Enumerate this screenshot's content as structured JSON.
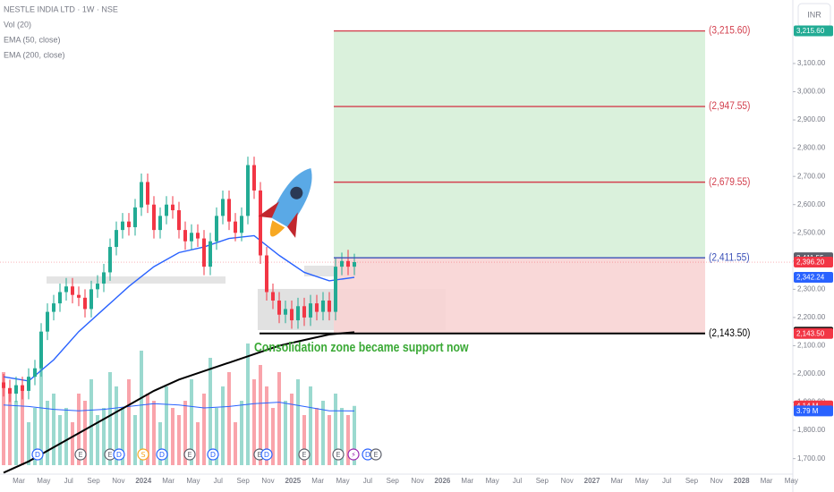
{
  "chart_data": {
    "type": "candlestick",
    "title": "NESTLE INDIA LTD · 1W · NSE",
    "legend_items": [
      "Vol (20)",
      "EMA (50, close)",
      "EMA (200, close)"
    ],
    "currency": "INR",
    "annotation": "Consolidation zone became support now",
    "x_labels": [
      "Mar",
      "May",
      "Jul",
      "Sep",
      "Nov",
      "2024",
      "Mar",
      "May",
      "Jul",
      "Sep",
      "Nov",
      "2025",
      "Mar",
      "May",
      "Jul",
      "Sep",
      "Nov",
      "2026",
      "Mar",
      "May",
      "Jul",
      "Sep",
      "Nov",
      "2027",
      "Mar",
      "May",
      "Jul",
      "Sep",
      "Nov",
      "2028",
      "Mar",
      "May"
    ],
    "ylim": [
      1645,
      3325
    ],
    "yticks": [
      {
        "value": 1700,
        "label": "1,700.00"
      },
      {
        "value": 1800,
        "label": "1,800.00"
      },
      {
        "value": 1900,
        "label": "1,900.00"
      },
      {
        "value": 2000,
        "label": "2,000.00"
      },
      {
        "value": 2100,
        "label": "2,100.00"
      },
      {
        "value": 2200,
        "label": "2,200.00"
      },
      {
        "value": 2300,
        "label": "2,300.00"
      },
      {
        "value": 2400,
        "label": "2,400.00"
      },
      {
        "value": 2500,
        "label": "2,500.00"
      },
      {
        "value": 2600,
        "label": "2,600.00"
      },
      {
        "value": 2700,
        "label": "2,700.00"
      },
      {
        "value": 2800,
        "label": "2,800.00"
      },
      {
        "value": 2900,
        "label": "2,900.00"
      },
      {
        "value": 3000,
        "label": "3,000.00"
      },
      {
        "value": 3100,
        "label": "3,100.00"
      }
    ],
    "up_color": "#22ab94",
    "down_color": "#f23645",
    "open": [
      1970,
      1950,
      1930,
      1960,
      1940,
      1990,
      2020,
      2150,
      2220,
      2250,
      2290,
      2310,
      2280,
      2270,
      2230,
      2300,
      2320,
      2360,
      2450,
      2510,
      2540,
      2520,
      2590,
      2680,
      2600,
      2510,
      2560,
      2600,
      2580,
      2510,
      2470,
      2500,
      2480,
      2380,
      2470,
      2560,
      2620,
      2540,
      2500,
      2560,
      2740,
      2650,
      2420,
      2290,
      2260,
      2210,
      2230,
      2190,
      2240,
      2200,
      2250,
      2220,
      2260,
      2220,
      2380,
      2400,
      2380
    ],
    "high": [
      2000,
      1980,
      1990,
      1990,
      2020,
      2050,
      2180,
      2250,
      2280,
      2320,
      2340,
      2340,
      2310,
      2300,
      2330,
      2350,
      2390,
      2480,
      2540,
      2570,
      2570,
      2620,
      2710,
      2710,
      2630,
      2590,
      2630,
      2630,
      2610,
      2540,
      2530,
      2530,
      2510,
      2500,
      2590,
      2650,
      2650,
      2570,
      2590,
      2770,
      2770,
      2680,
      2450,
      2320,
      2290,
      2260,
      2260,
      2270,
      2270,
      2280,
      2280,
      2290,
      2290,
      2410,
      2430,
      2440,
      2426
    ],
    "low": [
      1920,
      1900,
      1900,
      1910,
      1910,
      1960,
      1990,
      2120,
      2190,
      2220,
      2260,
      2250,
      2240,
      2200,
      2200,
      2270,
      2290,
      2330,
      2420,
      2480,
      2490,
      2490,
      2560,
      2570,
      2480,
      2480,
      2530,
      2550,
      2480,
      2440,
      2440,
      2450,
      2350,
      2350,
      2440,
      2530,
      2510,
      2470,
      2470,
      2530,
      2620,
      2390,
      2260,
      2230,
      2180,
      2180,
      2160,
      2160,
      2170,
      2170,
      2190,
      2190,
      2190,
      2190,
      2350,
      2350,
      2350
    ],
    "close": [
      1950,
      1930,
      1960,
      1940,
      1990,
      2020,
      2150,
      2220,
      2250,
      2290,
      2310,
      2280,
      2270,
      2230,
      2300,
      2320,
      2360,
      2450,
      2510,
      2540,
      2520,
      2590,
      2680,
      2600,
      2510,
      2560,
      2600,
      2580,
      2510,
      2470,
      2500,
      2480,
      2380,
      2470,
      2560,
      2620,
      2540,
      2500,
      2560,
      2740,
      2650,
      2420,
      2290,
      2260,
      2210,
      2230,
      2190,
      2240,
      2200,
      2250,
      2220,
      2260,
      2220,
      2380,
      2400,
      2380,
      2396.2
    ],
    "volume": [
      6.5,
      5.0,
      4.5,
      5.5,
      3.0,
      4.0,
      7.0,
      4.5,
      5.0,
      3.5,
      4.0,
      3.0,
      5.0,
      4.5,
      6.0,
      3.5,
      4.0,
      6.5,
      5.5,
      4.0,
      6.0,
      3.5,
      8.0,
      5.0,
      4.5,
      3.0,
      5.5,
      4.0,
      3.5,
      4.5,
      6.0,
      3.0,
      5.0,
      7.5,
      4.0,
      5.5,
      6.5,
      3.0,
      4.5,
      8.5,
      6.0,
      7.0,
      5.5,
      4.0,
      6.5,
      4.5,
      5.0,
      6.0,
      3.5,
      5.5,
      4.0,
      4.5,
      3.5,
      5.0,
      4.0,
      3.5,
      4.14
    ],
    "lines": [
      {
        "id": "vol-ma",
        "color": "#2962ff",
        "pane": "volume",
        "index": [
          0,
          4,
          8,
          12,
          16,
          20,
          24,
          28,
          32,
          36,
          40,
          44,
          48,
          52,
          56
        ],
        "values": [
          4.2,
          4.1,
          3.9,
          3.8,
          3.9,
          4.1,
          4.3,
          4.2,
          4.0,
          4.1,
          4.3,
          4.4,
          4.1,
          3.8,
          3.79
        ]
      },
      {
        "id": "ema50",
        "color": "#2962ff",
        "pane": "price",
        "index": [
          0,
          4,
          8,
          12,
          16,
          20,
          24,
          28,
          32,
          36,
          40,
          44,
          48,
          52,
          56
        ],
        "values": [
          1990,
          1975,
          2050,
          2150,
          2230,
          2310,
          2380,
          2430,
          2450,
          2480,
          2490,
          2420,
          2360,
          2330,
          2342.24
        ]
      },
      {
        "id": "ema200",
        "color": "#000000",
        "pane": "price",
        "index": [
          0,
          4,
          8,
          12,
          16,
          20,
          24,
          28,
          32,
          36,
          40,
          44,
          48,
          52,
          56
        ],
        "values": [
          1650,
          1690,
          1740,
          1790,
          1840,
          1890,
          1940,
          1980,
          2010,
          2040,
          2070,
          2100,
          2120,
          2140,
          2147.92
        ]
      }
    ],
    "levels": [
      {
        "value": 3215.6,
        "label": "(3,215.60)",
        "color": "#d3414f"
      },
      {
        "value": 2947.55,
        "label": "(2,947.55)",
        "color": "#d3414f"
      },
      {
        "value": 2679.55,
        "label": "(2,679.55)",
        "color": "#d3414f"
      },
      {
        "value": 2411.55,
        "label": "(2,411.55)",
        "color": "#3a50b8"
      },
      {
        "value": 2143.5,
        "label": "(2,143.50)",
        "color": "#000000"
      }
    ],
    "price_badges": [
      {
        "value": 3215.6,
        "label": "3,215.60",
        "color": "#22ab94"
      },
      {
        "value": 2411.55,
        "label": "2,411.55",
        "color": "#5d606b"
      },
      {
        "value": 2396.2,
        "label": "2,396.20",
        "color": "#f23645"
      },
      {
        "value": 2342.24,
        "label": "2,342.24",
        "color": "#2962ff"
      },
      {
        "value": 2147.92,
        "label": "2,147.92",
        "color": "#000000"
      },
      {
        "value": 2143.5,
        "label": "2,143.50",
        "color": "#f23645"
      }
    ],
    "volume_badges": [
      {
        "value": 4.14,
        "label": "4.14 M",
        "color": "#f23645"
      },
      {
        "value": 3.79,
        "label": "3.79 M",
        "color": "#2962ff"
      }
    ],
    "events": [
      "D",
      "E",
      "E",
      "D",
      "S",
      "D",
      "E",
      "D",
      "E",
      "D",
      "E",
      "E",
      "⚡",
      "D",
      "E"
    ]
  }
}
